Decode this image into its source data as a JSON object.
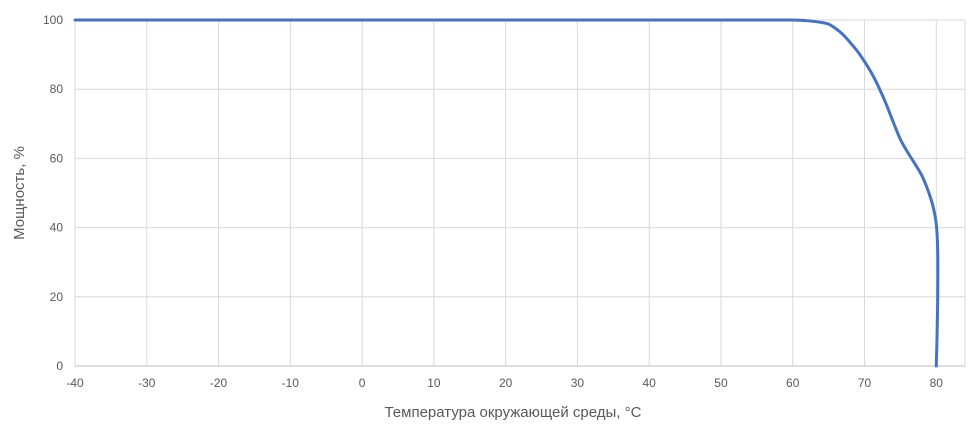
{
  "chart_data": {
    "type": "line",
    "title": "",
    "xlabel": "Температура окружающей среды, °C",
    "ylabel": "Мощность, %",
    "xlim": [
      -40,
      84
    ],
    "ylim": [
      0,
      100
    ],
    "x_ticks": [
      -40,
      -30,
      -20,
      -10,
      0,
      10,
      20,
      30,
      40,
      50,
      60,
      70,
      80
    ],
    "y_ticks": [
      0,
      20,
      40,
      60,
      80,
      100
    ],
    "grid": true,
    "legend": "none",
    "series": [
      {
        "color": "#4472C4",
        "points": [
          [
            -40,
            100
          ],
          [
            -20,
            100
          ],
          [
            0,
            100
          ],
          [
            20,
            100
          ],
          [
            40,
            100
          ],
          [
            55,
            100
          ],
          [
            60,
            100
          ],
          [
            62,
            99.8
          ],
          [
            64,
            99.3
          ],
          [
            65,
            98.8
          ],
          [
            66,
            97.5
          ],
          [
            67,
            95.8
          ],
          [
            68,
            93.5
          ],
          [
            69,
            91
          ],
          [
            70,
            88
          ],
          [
            71,
            84.6
          ],
          [
            72,
            80.5
          ],
          [
            73,
            75.8
          ],
          [
            74,
            70.5
          ],
          [
            75,
            65.5
          ],
          [
            76,
            61.8
          ],
          [
            77,
            58.5
          ],
          [
            78,
            55
          ],
          [
            78.8,
            51
          ],
          [
            79.5,
            46.5
          ],
          [
            80.0,
            41
          ],
          [
            80.2,
            33
          ],
          [
            80.2,
            20
          ],
          [
            80.1,
            8
          ],
          [
            80.0,
            0
          ]
        ]
      }
    ]
  }
}
